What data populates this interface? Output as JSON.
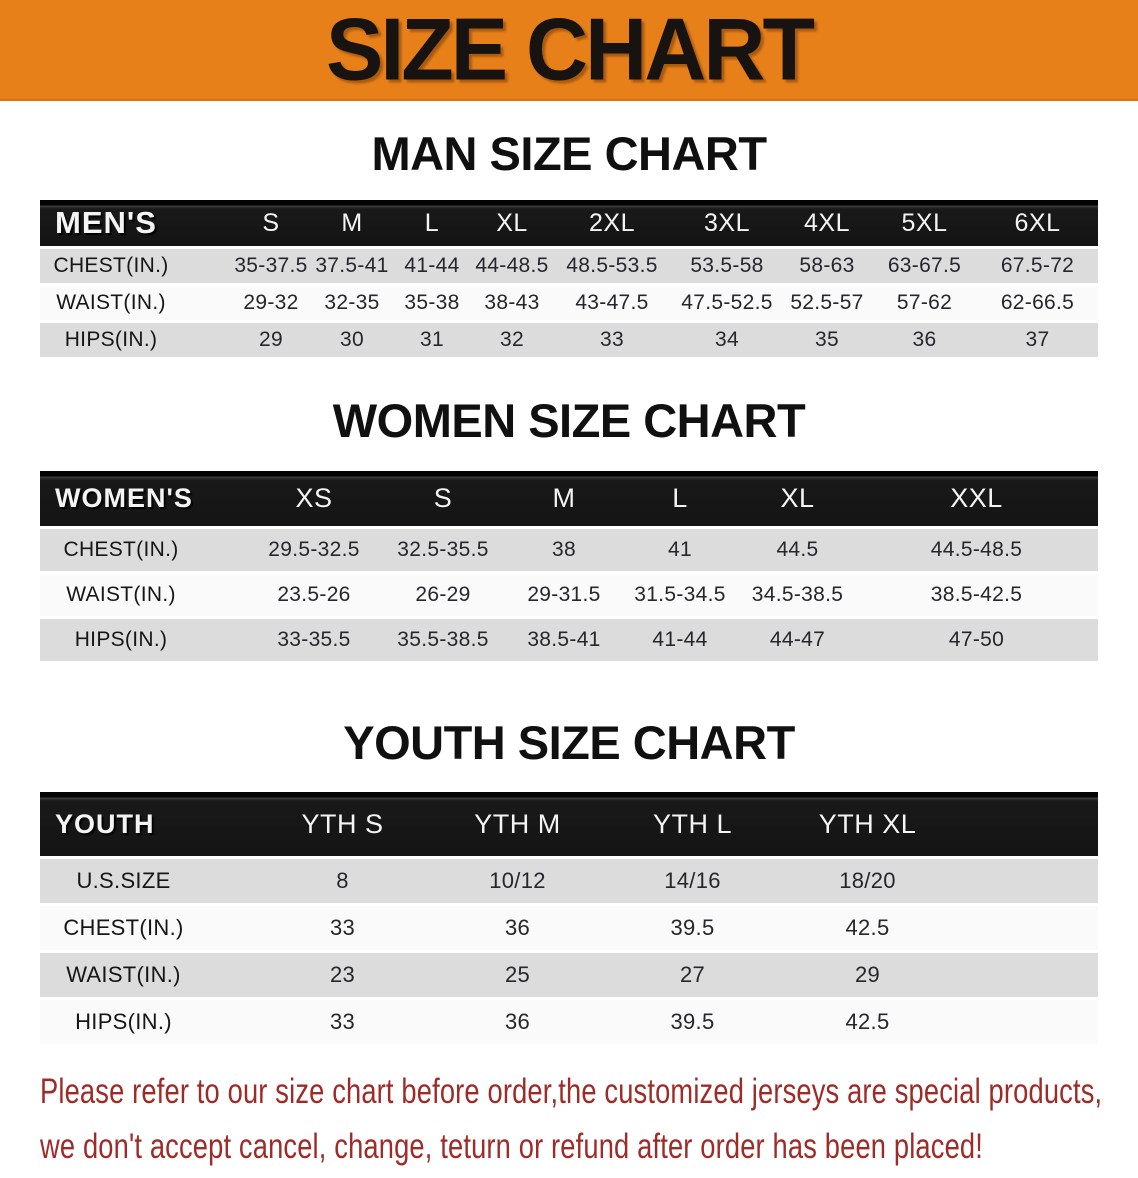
{
  "banner": {
    "title": "SIZE CHART"
  },
  "colors": {
    "banner_bg": "#E8801A",
    "table_header_bg": "#161616",
    "row_gray": "#dcdcdd",
    "row_white": "#fafafa",
    "disclaimer_red": "#9e2b27"
  },
  "sections": [
    {
      "heading": "MAN SIZE CHART",
      "table": {
        "header": [
          "MEN'S",
          "S",
          "M",
          "L",
          "XL",
          "2XL",
          "3XL",
          "4XL",
          "5XL",
          "6XL"
        ],
        "rows": [
          {
            "label": "CHEST(IN.)",
            "values": [
              "35-37.5",
              "37.5-41",
              "41-44",
              "44-48.5",
              "48.5-53.5",
              "53.5-58",
              "58-63",
              "63-67.5",
              "67.5-72"
            ]
          },
          {
            "label": "WAIST(IN.)",
            "values": [
              "29-32",
              "32-35",
              "35-38",
              "38-43",
              "43-47.5",
              "47.5-52.5",
              "52.5-57",
              "57-62",
              "62-66.5"
            ]
          },
          {
            "label": "HIPS(IN.)",
            "values": [
              "29",
              "30",
              "31",
              "32",
              "33",
              "34",
              "35",
              "36",
              "37"
            ]
          }
        ]
      }
    },
    {
      "heading": "WOMEN SIZE CHART",
      "table": {
        "header": [
          "WOMEN'S",
          "XS",
          "S",
          "M",
          "L",
          "XL",
          "XXL"
        ],
        "rows": [
          {
            "label": "CHEST(IN.)",
            "values": [
              "29.5-32.5",
              "32.5-35.5",
              "38",
              "41",
              "44.5",
              "44.5-48.5"
            ]
          },
          {
            "label": "WAIST(IN.)",
            "values": [
              "23.5-26",
              "26-29",
              "29-31.5",
              "31.5-34.5",
              "34.5-38.5",
              "38.5-42.5"
            ]
          },
          {
            "label": "HIPS(IN.)",
            "values": [
              "33-35.5",
              "35.5-38.5",
              "38.5-41",
              "41-44",
              "44-47",
              "47-50"
            ]
          }
        ]
      }
    },
    {
      "heading": "YOUTH SIZE CHART",
      "table": {
        "header": [
          "YOUTH",
          "YTH S",
          "YTH M",
          "YTH L",
          "YTH XL"
        ],
        "rows": [
          {
            "label": "U.S.SIZE",
            "values": [
              "8",
              "10/12",
              "14/16",
              "18/20"
            ]
          },
          {
            "label": "CHEST(IN.)",
            "values": [
              "33",
              "36",
              "39.5",
              "42.5"
            ]
          },
          {
            "label": "WAIST(IN.)",
            "values": [
              "23",
              "25",
              "27",
              "29"
            ]
          },
          {
            "label": "HIPS(IN.)",
            "values": [
              "33",
              "36",
              "39.5",
              "42.5"
            ]
          }
        ]
      }
    }
  ],
  "disclaimer": {
    "line1": "Please refer to our size chart before order,the customized jerseys are special products,",
    "line2": "we don't accept cancel, change, teturn or refund after order has been placed!"
  }
}
